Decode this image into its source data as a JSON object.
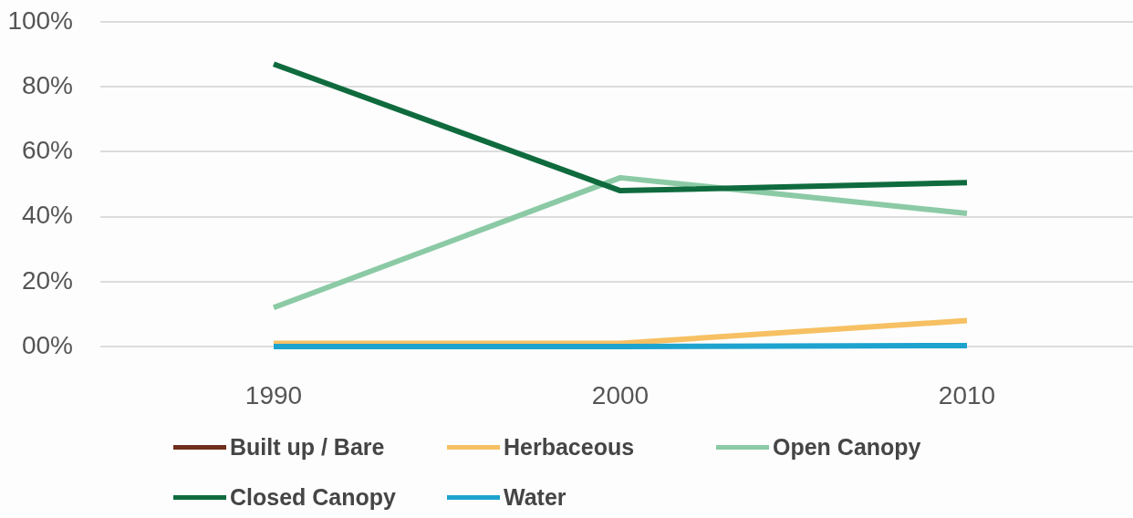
{
  "chart_data": {
    "type": "line",
    "categories": [
      "1990",
      "2000",
      "2010"
    ],
    "series": [
      {
        "name": "Built up / Bare",
        "color": "#6e2f1c",
        "values": [
          null,
          null,
          null
        ]
      },
      {
        "name": "Herbaceous",
        "color": "#f6c063",
        "values": [
          1,
          1,
          8
        ]
      },
      {
        "name": "Open Canopy",
        "color": "#8bcaa5",
        "values": [
          12,
          52,
          41
        ]
      },
      {
        "name": "Closed Canopy",
        "color": "#0f6b3e",
        "values": [
          87,
          48,
          50.5
        ]
      },
      {
        "name": "Water",
        "color": "#1ea3cf",
        "values": [
          0,
          0,
          0.3
        ]
      }
    ],
    "ylim": [
      0,
      100
    ],
    "yticks": [
      {
        "value": 0,
        "label": "00%"
      },
      {
        "value": 20,
        "label": "20%"
      },
      {
        "value": 40,
        "label": "40%"
      },
      {
        "value": 60,
        "label": "60%"
      },
      {
        "value": 80,
        "label": "80%"
      },
      {
        "value": 100,
        "label": "100%"
      }
    ],
    "grid": "y",
    "legend": "bottom"
  }
}
